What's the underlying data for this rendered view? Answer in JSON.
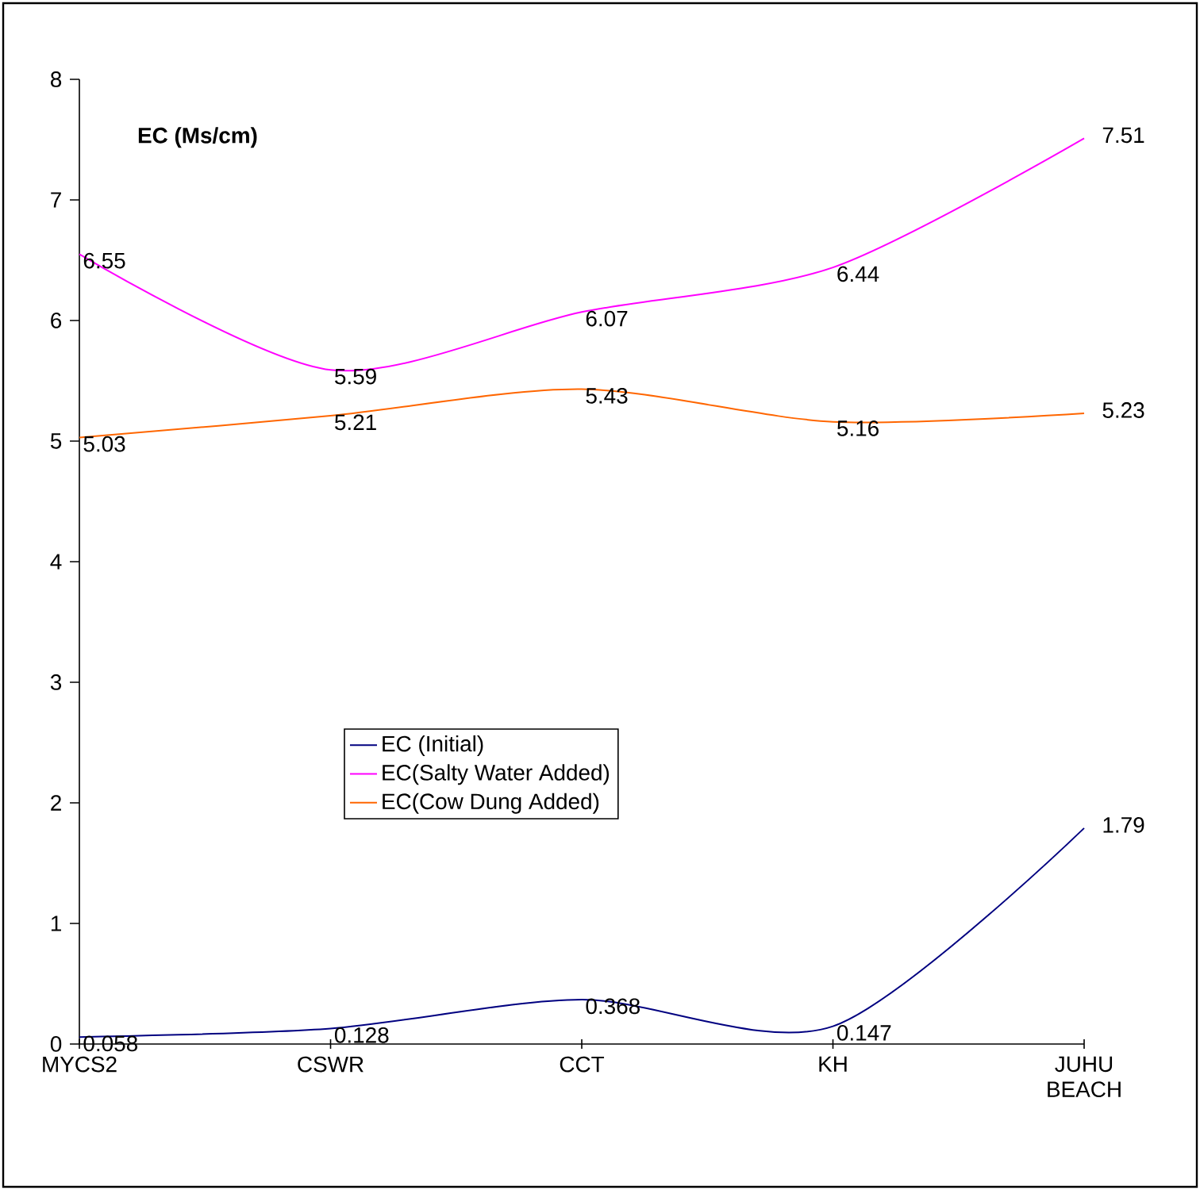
{
  "chart_data": {
    "type": "line",
    "title": "EC (Ms/cm)",
    "categories": [
      "MYCS2",
      "CSWR",
      "CCT",
      "KH",
      "JUHU BEACH"
    ],
    "series": [
      {
        "name": "EC (Initial)",
        "color": "#000080",
        "values": [
          0.058,
          0.128,
          0.368,
          0.147,
          1.79
        ]
      },
      {
        "name": "EC(Salty Water Added)",
        "color": "#ff00ff",
        "values": [
          6.55,
          5.59,
          6.07,
          6.44,
          7.51
        ]
      },
      {
        "name": "EC(Cow Dung Added)",
        "color": "#ff6600",
        "values": [
          5.03,
          5.21,
          5.43,
          5.16,
          5.23
        ]
      }
    ],
    "ylim": [
      0,
      8
    ],
    "yticks": [
      0,
      1,
      2,
      3,
      4,
      5,
      6,
      7,
      8
    ],
    "data_labels": true,
    "legend": "bottom",
    "grid": false,
    "marker": "none",
    "line_style": "solid"
  }
}
